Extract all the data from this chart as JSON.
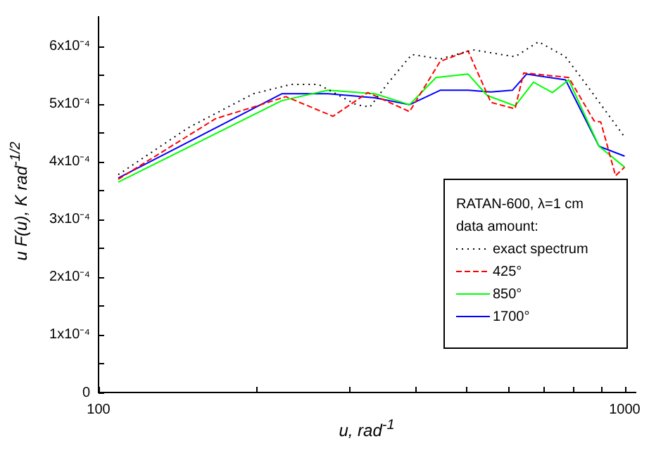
{
  "chart_data": {
    "type": "line",
    "xlabel": "u, rad$^{-1}$",
    "ylabel": "u F(u), K rad$^{-1/2}$",
    "legend_title": "RATAN-600, λ=1 cm",
    "annotations": [
      "data amount:"
    ],
    "log": "x",
    "grid": false,
    "legend": "bottom right",
    "marker": "none",
    "xlim": [
      100,
      1050
    ],
    "xticks": [
      100,
      {
        "value": 200,
        "label": null
      },
      {
        "value": 300,
        "label": null
      },
      {
        "value": 400,
        "label": null
      },
      {
        "value": 500,
        "label": null
      },
      {
        "value": 600,
        "label": null
      },
      {
        "value": 700,
        "label": null
      },
      {
        "value": 800,
        "label": null
      },
      {
        "value": 900,
        "label": null
      },
      1000
    ],
    "ylim": [
      0,
      0.00065
    ],
    "yticks": [
      {
        "value": 0,
        "label": "0"
      },
      {
        "value": 5e-05,
        "label": null
      },
      {
        "value": 0.0001,
        "label": "1x10⁻⁴"
      },
      {
        "value": 0.00015,
        "label": null
      },
      {
        "value": 0.0002,
        "label": "2x10⁻⁴"
      },
      {
        "value": 0.00025,
        "label": null
      },
      {
        "value": 0.0003,
        "label": "3x10⁻⁴"
      },
      {
        "value": 0.00035,
        "label": null
      },
      {
        "value": 0.0004,
        "label": "4x10⁻⁴"
      },
      {
        "value": 0.00045,
        "label": null
      },
      {
        "value": 0.0005,
        "label": "5x10⁻⁴"
      },
      {
        "value": 0.00055,
        "label": null
      },
      {
        "value": 0.0006,
        "label": "6x10⁻⁴"
      }
    ],
    "series": [
      {
        "name": "exact spectrum",
        "color": "#000000",
        "line_style": "dotted",
        "x": [
          109,
          148,
          197,
          232,
          262,
          309,
          328,
          356,
          394,
          446,
          515,
          619,
          686,
          772,
          858,
          1000
        ],
        "values": [
          0.000377,
          0.000458,
          0.000517,
          0.000533,
          0.000533,
          0.000498,
          0.000494,
          0.000537,
          0.000585,
          0.000577,
          0.000593,
          0.000581,
          0.000607,
          0.000581,
          0.000525,
          0.000442
        ]
      },
      {
        "name": "425°",
        "color": "#ff0000",
        "line_style": "dashed",
        "x": [
          109,
          167,
          197,
          227,
          279,
          325,
          390,
          446,
          504,
          557,
          619,
          643,
          783,
          875,
          901,
          961,
          1000
        ],
        "values": [
          0.000369,
          0.000474,
          0.000494,
          0.000512,
          0.000478,
          0.000519,
          0.000486,
          0.000573,
          0.000591,
          0.000502,
          0.000491,
          0.000553,
          0.000545,
          0.00047,
          0.000468,
          0.000375,
          0.00039
        ]
      },
      {
        "name": "850°",
        "color": "#00ff00",
        "line_style": "solid",
        "x": [
          109,
          223,
          273,
          335,
          390,
          438,
          504,
          548,
          619,
          671,
          729,
          783,
          894,
          1000
        ],
        "values": [
          0.000364,
          0.000505,
          0.000523,
          0.000517,
          0.000498,
          0.000545,
          0.000551,
          0.000514,
          0.000496,
          0.000537,
          0.000519,
          0.000541,
          0.000426,
          0.00039
        ]
      },
      {
        "name": "1700°",
        "color": "#0000ff",
        "line_style": "solid",
        "x": [
          109,
          223,
          273,
          335,
          390,
          446,
          504,
          557,
          612,
          651,
          772,
          894,
          1000
        ],
        "values": [
          0.000371,
          0.000517,
          0.000517,
          0.00051,
          0.000498,
          0.000523,
          0.000523,
          0.00052,
          0.000523,
          0.000551,
          0.000541,
          0.000426,
          0.000409
        ]
      }
    ]
  }
}
